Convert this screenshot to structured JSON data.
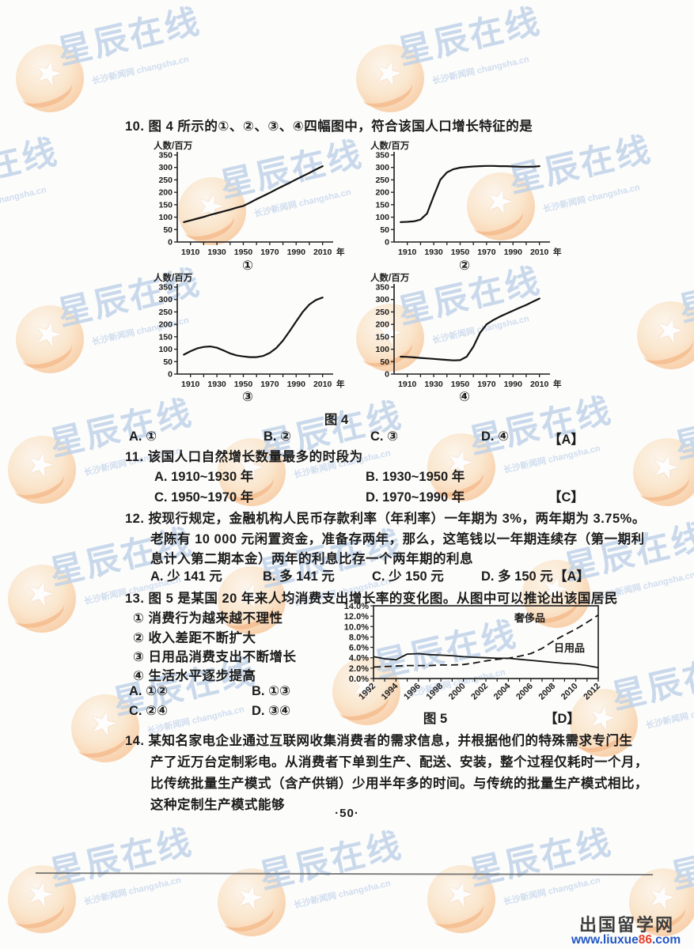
{
  "page": {
    "number_label": "·50·"
  },
  "watermark": {
    "brand": "星辰在线",
    "subtext": "长沙新闻网 changsha.cn"
  },
  "questions": {
    "q10": {
      "number": "10.",
      "text": "图 4 所示的①、②、③、④四幅图中，符合该国人口增长特征的是",
      "figure_caption": "图 4",
      "options": [
        {
          "label": "A.",
          "text": "①"
        },
        {
          "label": "B.",
          "text": "②"
        },
        {
          "label": "C.",
          "text": "③"
        },
        {
          "label": "D.",
          "text": "④"
        }
      ],
      "answer": "【A】"
    },
    "q11": {
      "number": "11.",
      "text": "该国人口自然增长数量最多的时段为",
      "options": [
        {
          "label": "A.",
          "text": "1910~1930 年"
        },
        {
          "label": "B.",
          "text": "1930~1950 年"
        },
        {
          "label": "C.",
          "text": "1950~1970 年"
        },
        {
          "label": "D.",
          "text": "1970~1990 年"
        }
      ],
      "answer": "【C】"
    },
    "q12": {
      "number": "12.",
      "lines": [
        "按现行规定，金融机构人民币存款利率（年利率）一年期为 3%，两年期为 3.75%。",
        "老陈有 10 000 元闲置资金，准备存两年，那么，这笔钱以一年期连续存（第一期利",
        "息计入第二期本金）两年的利息比存一个两年期的利息"
      ],
      "options": [
        {
          "label": "A.",
          "text": "少 141 元"
        },
        {
          "label": "B.",
          "text": "多 141 元"
        },
        {
          "label": "C.",
          "text": "少 150 元"
        },
        {
          "label": "D.",
          "text": "多 150 元"
        }
      ],
      "answer": "【A】"
    },
    "q13": {
      "number": "13.",
      "text": "图 5 是某国 20 年来人均消费支出增长率的变化图。从图中可以推论出该国居民",
      "statements": [
        "① 消费行为越来越不理性",
        "② 收入差距不断扩大",
        "③ 日用品消费支出不断增长",
        "④ 生活水平逐步提高"
      ],
      "options": [
        {
          "label": "A.",
          "text": "①②"
        },
        {
          "label": "B.",
          "text": "①③"
        },
        {
          "label": "C.",
          "text": "②④"
        },
        {
          "label": "D.",
          "text": "③④"
        }
      ],
      "figure_caption": "图 5",
      "answer": "【D】"
    },
    "q14": {
      "number": "14.",
      "lines": [
        "某知名家电企业通过互联网收集消费者的需求信息，并根据他们的特殊需求专门生",
        "产了近万台定制彩电。从消费者下单到生产、配送、安装，整个过程仅耗时一个月，",
        "比传统批量生产模式（含产供销）少用半年多的时间。与传统的批量生产模式相比，",
        "这种定制生产模式能够"
      ]
    }
  },
  "footer": {
    "site_name": "出国留学网",
    "url_prefix": "www.liuxue",
    "url_mid": "86",
    "url_suffix": ".com"
  },
  "chart_data": [
    {
      "id": "pop1",
      "type": "line",
      "title": "①",
      "ylabel": "人数/百万",
      "x_unit": "年",
      "ylim": [
        0,
        350
      ],
      "ytick_step": 50,
      "xtick_labels": [
        1910,
        1930,
        1950,
        1970,
        1990,
        2010
      ],
      "years": [
        1905,
        1910,
        1915,
        1920,
        1925,
        1930,
        1935,
        1940,
        1945,
        1950,
        1955,
        1960,
        1965,
        1970,
        1975,
        1980,
        1985,
        1990,
        1995,
        2000,
        2005,
        2010
      ],
      "values": [
        80,
        87,
        94,
        101,
        109,
        116,
        123,
        130,
        138,
        145,
        158,
        172,
        185,
        198,
        212,
        225,
        238,
        252,
        265,
        278,
        292,
        305
      ]
    },
    {
      "id": "pop2",
      "type": "line",
      "title": "②",
      "ylabel": "人数/百万",
      "x_unit": "年",
      "ylim": [
        0,
        350
      ],
      "ytick_step": 50,
      "xtick_labels": [
        1910,
        1930,
        1950,
        1970,
        1990,
        2010
      ],
      "years": [
        1905,
        1910,
        1915,
        1920,
        1925,
        1930,
        1935,
        1940,
        1945,
        1950,
        1955,
        1960,
        1965,
        1970,
        1975,
        1980,
        1985,
        1990,
        1995,
        2000,
        2005,
        2010
      ],
      "values": [
        80,
        81,
        83,
        90,
        115,
        185,
        250,
        280,
        293,
        299,
        302,
        304,
        305,
        306,
        306,
        305,
        305,
        304,
        303,
        303,
        303,
        305
      ]
    },
    {
      "id": "pop3",
      "type": "line",
      "title": "③",
      "ylabel": "人数/百万",
      "x_unit": "年",
      "ylim": [
        0,
        350
      ],
      "ytick_step": 50,
      "xtick_labels": [
        1910,
        1930,
        1950,
        1970,
        1990,
        2010
      ],
      "years": [
        1905,
        1910,
        1915,
        1920,
        1925,
        1930,
        1935,
        1940,
        1945,
        1950,
        1955,
        1960,
        1965,
        1970,
        1975,
        1980,
        1985,
        1990,
        1995,
        2000,
        2005,
        2010
      ],
      "values": [
        78,
        92,
        103,
        109,
        111,
        106,
        95,
        83,
        75,
        71,
        68,
        68,
        73,
        85,
        105,
        135,
        172,
        212,
        250,
        280,
        298,
        308
      ]
    },
    {
      "id": "pop4",
      "type": "line",
      "title": "④",
      "ylabel": "人数/百万",
      "x_unit": "年",
      "ylim": [
        0,
        350
      ],
      "ytick_step": 50,
      "xtick_labels": [
        1910,
        1930,
        1950,
        1970,
        1990,
        2010
      ],
      "years": [
        1905,
        1910,
        1915,
        1920,
        1925,
        1930,
        1935,
        1940,
        1945,
        1950,
        1955,
        1960,
        1965,
        1970,
        1975,
        1980,
        1985,
        1990,
        1995,
        2000,
        2005,
        2010
      ],
      "values": [
        70,
        69,
        67,
        65,
        63,
        61,
        59,
        57,
        55,
        56,
        70,
        110,
        165,
        200,
        217,
        231,
        243,
        255,
        267,
        278,
        291,
        304
      ]
    },
    {
      "id": "consumption",
      "type": "line",
      "title": "图 5",
      "ylabel": "",
      "ylim": [
        0,
        14
      ],
      "ytick_step": 2,
      "ytick_format": "percent",
      "xtick_labels": [
        1992,
        1994,
        1996,
        1998,
        2000,
        2002,
        2004,
        2006,
        2008,
        2010,
        2012
      ],
      "years": [
        1992,
        1993,
        1994,
        1995,
        1996,
        1997,
        1998,
        1999,
        2000,
        2001,
        2002,
        2003,
        2004,
        2005,
        2006,
        2007,
        2008,
        2009,
        2010,
        2011,
        2012
      ],
      "series": [
        {
          "name": "奢侈品",
          "style": "dashed",
          "values": [
            2.2,
            2.3,
            2.4,
            2.5,
            2.5,
            2.5,
            2.6,
            2.6,
            2.7,
            3.0,
            3.4,
            3.7,
            3.9,
            4.3,
            4.8,
            5.8,
            7.2,
            8.4,
            9.5,
            10.8,
            12.2
          ]
        },
        {
          "name": "日用品",
          "style": "solid",
          "values": [
            4.2,
            3.8,
            3.6,
            4.7,
            4.8,
            4.6,
            4.5,
            4.4,
            4.2,
            4.1,
            4.0,
            3.9,
            3.9,
            3.7,
            3.5,
            3.3,
            3.1,
            2.9,
            2.8,
            2.5,
            2.1
          ]
        }
      ]
    }
  ]
}
